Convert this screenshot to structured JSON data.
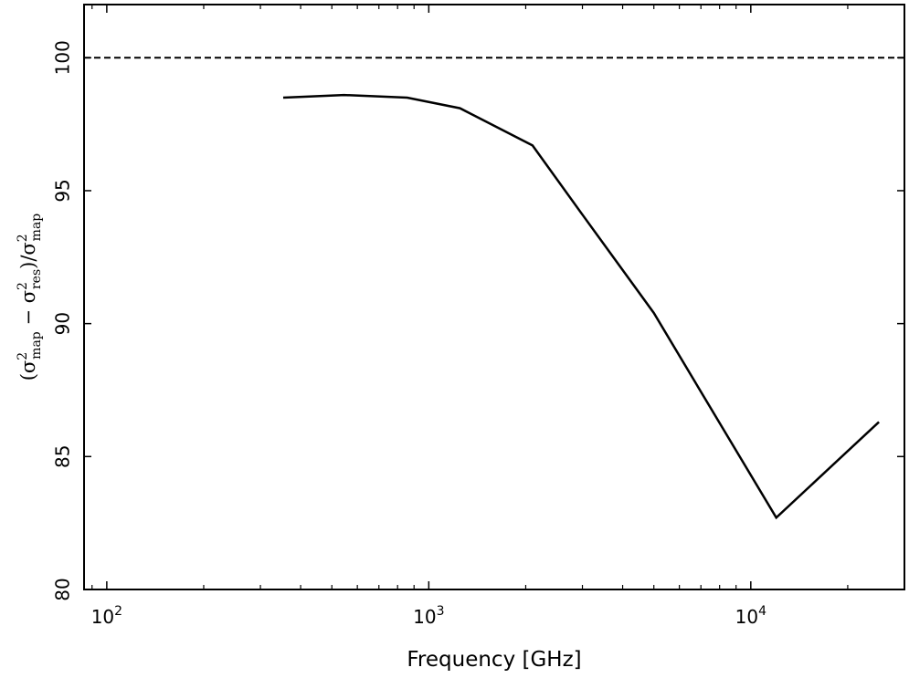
{
  "chart_data": {
    "type": "line",
    "title": "",
    "xlabel": "Frequency [GHz]",
    "ylabel": "(σ²map − σ²res)/σ²map",
    "ylabel_parts": {
      "open": "(σ",
      "sup1": "2",
      "sub1": "map",
      "minus": " − σ",
      "sup2": "2",
      "sub2": "res",
      "close": ")/σ",
      "sup3": "2",
      "sub3": "map"
    },
    "x_scale": "log",
    "xlim": [
      85,
      30000
    ],
    "ylim": [
      80,
      102
    ],
    "x_ticks": [
      {
        "value": 100,
        "base": "10",
        "exp": "2"
      },
      {
        "value": 1000,
        "base": "10",
        "exp": "3"
      },
      {
        "value": 10000,
        "base": "10",
        "exp": "4"
      }
    ],
    "y_ticks": [
      {
        "value": 80,
        "label": "80"
      },
      {
        "value": 85,
        "label": "85"
      },
      {
        "value": 90,
        "label": "90"
      },
      {
        "value": 95,
        "label": "95"
      },
      {
        "value": 100,
        "label": "100"
      }
    ],
    "grid": false,
    "reference_line": {
      "y": 100,
      "style": "dashed",
      "color": "#000000"
    },
    "series": [
      {
        "color": "#000000",
        "x": [
          353,
          545,
          857,
          1250,
          2100,
          3000,
          5000,
          12000,
          25000
        ],
        "y": [
          98.5,
          98.6,
          98.5,
          98.1,
          96.7,
          94.1,
          90.4,
          82.7,
          86.3
        ]
      }
    ]
  }
}
